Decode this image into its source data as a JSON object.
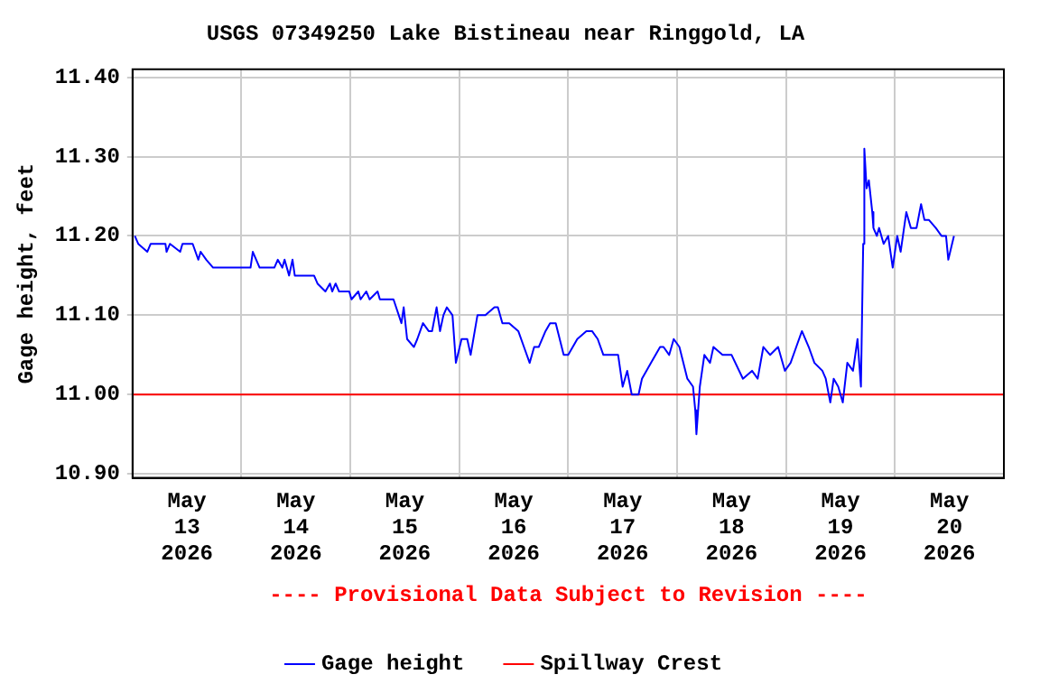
{
  "chart_data": {
    "type": "line",
    "title": "USGS 07349250 Lake Bistineau near Ringgold, LA",
    "ylabel": "Gage height, feet",
    "annotations": [
      "---- Provisional Data Subject to Revision ----"
    ],
    "xlim": [
      "2026-05-13T00:00",
      "2026-05-21T00:00"
    ],
    "xticks": [
      {
        "value": "2026-05-13T00:00",
        "label": null
      },
      {
        "value": "2026-05-13T12:00",
        "label": "May 13 2026"
      },
      {
        "value": "2026-05-14T00:00",
        "label": null
      },
      {
        "value": "2026-05-14T12:00",
        "label": "May 14 2026"
      },
      {
        "value": "2026-05-15T00:00",
        "label": null
      },
      {
        "value": "2026-05-15T12:00",
        "label": "May 15 2026"
      },
      {
        "value": "2026-05-16T00:00",
        "label": null
      },
      {
        "value": "2026-05-16T12:00",
        "label": "May 16 2026"
      },
      {
        "value": "2026-05-17T00:00",
        "label": null
      },
      {
        "value": "2026-05-17T12:00",
        "label": "May 17 2026"
      },
      {
        "value": "2026-05-18T00:00",
        "label": null
      },
      {
        "value": "2026-05-18T12:00",
        "label": "May 18 2026"
      },
      {
        "value": "2026-05-19T00:00",
        "label": null
      },
      {
        "value": "2026-05-19T12:00",
        "label": "May 19 2026"
      },
      {
        "value": "2026-05-20T00:00",
        "label": null
      },
      {
        "value": "2026-05-20T12:00",
        "label": "May 20 2026"
      },
      {
        "value": "2026-05-21T00:00",
        "label": null
      }
    ],
    "ylim": [
      10.895,
      11.41
    ],
    "yticks": [
      {
        "value": 10.9,
        "label": "10.90"
      },
      {
        "value": 11.0,
        "label": "11.00"
      },
      {
        "value": 11.1,
        "label": "11.10"
      },
      {
        "value": 11.2,
        "label": "11.20"
      },
      {
        "value": 11.3,
        "label": "11.30"
      },
      {
        "value": 11.4,
        "label": "11.40"
      }
    ],
    "grid": true,
    "legend": "bottom",
    "marker": "none",
    "line_style": "solid",
    "ref_lines": [
      {
        "axis": "y",
        "value": 11.0,
        "label": "Spillway Crest",
        "color": "#ff0000"
      }
    ],
    "series": [
      {
        "name": "Gage height",
        "color": "#0000ff",
        "x": [
          "2026-05-13T00:30",
          "2026-05-13T01:15",
          "2026-05-13T03:15",
          "2026-05-13T04:00",
          "2026-05-13T07:15",
          "2026-05-13T07:30",
          "2026-05-13T08:15",
          "2026-05-13T10:30",
          "2026-05-13T11:00",
          "2026-05-13T13:15",
          "2026-05-13T14:30",
          "2026-05-13T15:00",
          "2026-05-13T16:15",
          "2026-05-13T17:45",
          "2026-05-14T02:00",
          "2026-05-14T02:30",
          "2026-05-14T04:00",
          "2026-05-14T07:15",
          "2026-05-14T08:00",
          "2026-05-14T09:00",
          "2026-05-14T09:30",
          "2026-05-14T10:30",
          "2026-05-14T11:15",
          "2026-05-14T11:45",
          "2026-05-14T16:00",
          "2026-05-14T16:45",
          "2026-05-14T18:30",
          "2026-05-14T19:30",
          "2026-05-14T20:00",
          "2026-05-14T20:45",
          "2026-05-14T21:30",
          "2026-05-14T23:45",
          "2026-05-15T00:15",
          "2026-05-15T01:45",
          "2026-05-15T02:15",
          "2026-05-15T03:30",
          "2026-05-15T04:15",
          "2026-05-15T06:00",
          "2026-05-15T06:30",
          "2026-05-15T09:30",
          "2026-05-15T11:15",
          "2026-05-15T11:45",
          "2026-05-15T12:30",
          "2026-05-15T14:00",
          "2026-05-15T14:45",
          "2026-05-15T16:00",
          "2026-05-15T17:15",
          "2026-05-15T18:00",
          "2026-05-15T19:00",
          "2026-05-15T19:45",
          "2026-05-15T20:30",
          "2026-05-15T21:15",
          "2026-05-15T22:30",
          "2026-05-15T23:15",
          "2026-05-16T00:30",
          "2026-05-16T01:45",
          "2026-05-16T02:30",
          "2026-05-16T04:00",
          "2026-05-16T05:45",
          "2026-05-16T07:45",
          "2026-05-16T08:30",
          "2026-05-16T09:30",
          "2026-05-16T11:00",
          "2026-05-16T13:00",
          "2026-05-16T14:15",
          "2026-05-16T15:30",
          "2026-05-16T16:30",
          "2026-05-16T17:30",
          "2026-05-16T19:00",
          "2026-05-16T20:00",
          "2026-05-16T21:15",
          "2026-05-16T23:00",
          "2026-05-17T00:00",
          "2026-05-17T02:00",
          "2026-05-17T04:00",
          "2026-05-17T05:15",
          "2026-05-17T06:30",
          "2026-05-17T07:45",
          "2026-05-17T09:45",
          "2026-05-17T11:00",
          "2026-05-17T12:00",
          "2026-05-17T13:00",
          "2026-05-17T14:00",
          "2026-05-17T15:30",
          "2026-05-17T16:15",
          "2026-05-17T18:15",
          "2026-05-17T20:15",
          "2026-05-17T21:00",
          "2026-05-17T22:15",
          "2026-05-17T23:15",
          "2026-05-18T00:30",
          "2026-05-18T02:15",
          "2026-05-18T03:30",
          "2026-05-18T04:00",
          "2026-05-18T04:15",
          "2026-05-18T05:00",
          "2026-05-18T06:00",
          "2026-05-18T07:15",
          "2026-05-18T08:00",
          "2026-05-18T10:00",
          "2026-05-18T12:00",
          "2026-05-18T14:30",
          "2026-05-18T16:30",
          "2026-05-18T17:45",
          "2026-05-18T19:00",
          "2026-05-18T20:30",
          "2026-05-18T22:15",
          "2026-05-18T23:45",
          "2026-05-19T01:00",
          "2026-05-19T02:15",
          "2026-05-19T03:30",
          "2026-05-19T05:00",
          "2026-05-19T06:15",
          "2026-05-19T08:00",
          "2026-05-19T08:45",
          "2026-05-19T09:45",
          "2026-05-19T10:30",
          "2026-05-19T11:30",
          "2026-05-19T12:30",
          "2026-05-19T13:30",
          "2026-05-19T14:45",
          "2026-05-19T15:45",
          "2026-05-19T16:30",
          "2026-05-19T17:00",
          "2026-05-19T17:15",
          "2026-05-19T17:45",
          "2026-05-19T18:15",
          "2026-05-19T19:00",
          "2026-05-19T19:15",
          "2026-05-19T20:00",
          "2026-05-19T20:30",
          "2026-05-19T21:30",
          "2026-05-19T22:30",
          "2026-05-19T23:30",
          "2026-05-20T00:30",
          "2026-05-20T01:15",
          "2026-05-20T02:30",
          "2026-05-20T03:30",
          "2026-05-20T04:45",
          "2026-05-20T05:45",
          "2026-05-20T06:30",
          "2026-05-20T07:30",
          "2026-05-20T09:00",
          "2026-05-20T10:15",
          "2026-05-20T11:15",
          "2026-05-20T11:45",
          "2026-05-20T13:00"
        ],
        "values": [
          11.2,
          11.19,
          11.18,
          11.19,
          11.19,
          11.18,
          11.19,
          11.18,
          11.19,
          11.19,
          11.17,
          11.18,
          11.17,
          11.16,
          11.16,
          11.18,
          11.16,
          11.16,
          11.17,
          11.16,
          11.17,
          11.15,
          11.17,
          11.15,
          11.15,
          11.14,
          11.13,
          11.14,
          11.13,
          11.14,
          11.13,
          11.13,
          11.12,
          11.13,
          11.12,
          11.13,
          11.12,
          11.13,
          11.12,
          11.12,
          11.09,
          11.11,
          11.07,
          11.06,
          11.07,
          11.09,
          11.08,
          11.08,
          11.11,
          11.08,
          11.1,
          11.11,
          11.1,
          11.04,
          11.07,
          11.07,
          11.05,
          11.1,
          11.1,
          11.11,
          11.11,
          11.09,
          11.09,
          11.08,
          11.06,
          11.04,
          11.06,
          11.06,
          11.08,
          11.09,
          11.09,
          11.05,
          11.05,
          11.07,
          11.08,
          11.08,
          11.07,
          11.05,
          11.05,
          11.05,
          11.01,
          11.03,
          11.0,
          11.0,
          11.02,
          11.04,
          11.06,
          11.06,
          11.05,
          11.07,
          11.06,
          11.02,
          11.01,
          10.98,
          10.95,
          11.01,
          11.05,
          11.04,
          11.06,
          11.05,
          11.05,
          11.02,
          11.03,
          11.02,
          11.06,
          11.05,
          11.06,
          11.03,
          11.04,
          11.06,
          11.08,
          11.06,
          11.04,
          11.03,
          11.02,
          10.99,
          11.02,
          11.01,
          10.99,
          11.04,
          11.03,
          11.07,
          11.01,
          11.19,
          11.31,
          11.26,
          11.27,
          11.23,
          11.21,
          11.2,
          11.21,
          11.19,
          11.2,
          11.16,
          11.2,
          11.18,
          11.23,
          11.21,
          11.21,
          11.24,
          11.22,
          11.22,
          11.21,
          11.2,
          11.2,
          11.17,
          11.2
        ]
      }
    ]
  }
}
